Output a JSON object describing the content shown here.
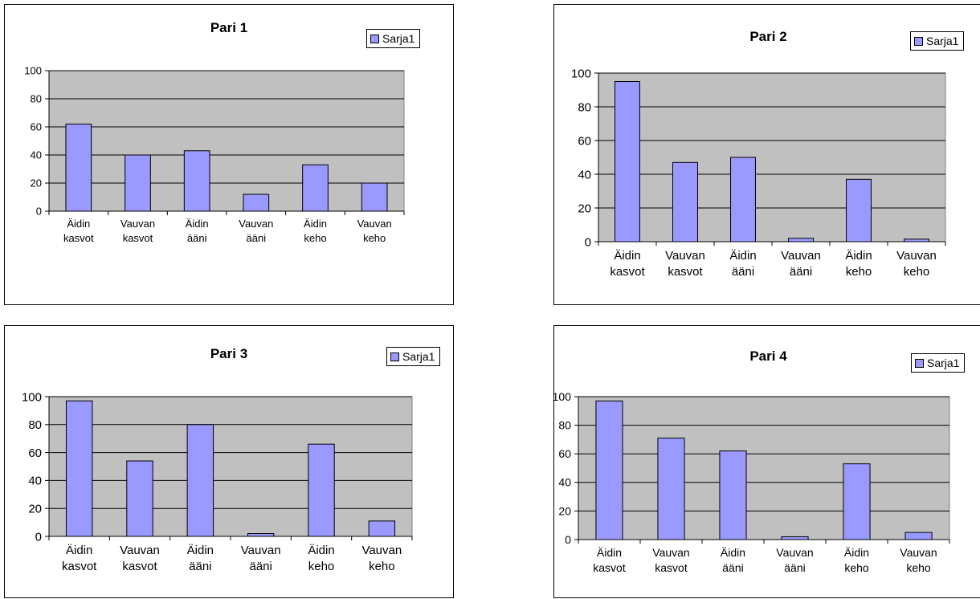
{
  "legend_label": "Sarja1",
  "colors": {
    "bar": "#9999ff",
    "plot_bg": "#c0c0c0",
    "grid": "#000000"
  },
  "chart_data": [
    {
      "type": "bar",
      "title": "Pari 1",
      "categories": [
        [
          "Äidin",
          "kasvot"
        ],
        [
          "Vauvan",
          "kasvot"
        ],
        [
          "Äidin",
          "ääni"
        ],
        [
          "Vauvan",
          "ääni"
        ],
        [
          "Äidin",
          "keho"
        ],
        [
          "Vauvan",
          "keho"
        ]
      ],
      "series": [
        {
          "name": "Sarja1",
          "values": [
            62,
            40,
            43,
            12,
            33,
            20
          ]
        }
      ],
      "ylim": [
        0,
        100
      ],
      "yticks": [
        "0",
        "20",
        "40",
        "60",
        "80",
        "100"
      ],
      "grid": true,
      "legend": "top-right"
    },
    {
      "type": "bar",
      "title": "Pari 2",
      "categories": [
        [
          "Äidin",
          "kasvot"
        ],
        [
          "Vauvan",
          "kasvot"
        ],
        [
          "Äidin",
          "ääni"
        ],
        [
          "Vauvan",
          "ääni"
        ],
        [
          "Äidin",
          "keho"
        ],
        [
          "Vauvan",
          "keho"
        ]
      ],
      "series": [
        {
          "name": "Sarja1",
          "values": [
            95,
            47,
            50,
            2,
            37,
            1.5
          ]
        }
      ],
      "ylim": [
        0,
        100
      ],
      "yticks": [
        "0",
        "20",
        "40",
        "60",
        "80",
        "100"
      ],
      "grid": true,
      "legend": "top-right"
    },
    {
      "type": "bar",
      "title": "Pari 3",
      "categories": [
        [
          "Äidin",
          "kasvot"
        ],
        [
          "Vauvan",
          "kasvot"
        ],
        [
          "Äidin",
          "ääni"
        ],
        [
          "Vauvan",
          "ääni"
        ],
        [
          "Äidin",
          "keho"
        ],
        [
          "Vauvan",
          "keho"
        ]
      ],
      "series": [
        {
          "name": "Sarja1",
          "values": [
            97,
            54,
            80,
            2,
            66,
            11
          ]
        }
      ],
      "ylim": [
        0,
        100
      ],
      "yticks": [
        "0",
        "20",
        "40",
        "60",
        "80",
        "100"
      ],
      "grid": true,
      "legend": "top-right"
    },
    {
      "type": "bar",
      "title": "Pari 4",
      "categories": [
        [
          "Äidin",
          "kasvot"
        ],
        [
          "Vauvan",
          "kasvot"
        ],
        [
          "Äidin",
          "ääni"
        ],
        [
          "Vauvan",
          "ääni"
        ],
        [
          "Äidin",
          "keho"
        ],
        [
          "Vauvan",
          "keho"
        ]
      ],
      "series": [
        {
          "name": "Sarja1",
          "values": [
            97,
            71,
            62,
            2,
            53,
            5
          ]
        }
      ],
      "ylim": [
        0,
        100
      ],
      "yticks": [
        "0",
        "20",
        "40",
        "60",
        "80",
        "100"
      ],
      "grid": true,
      "legend": "top-right"
    }
  ]
}
